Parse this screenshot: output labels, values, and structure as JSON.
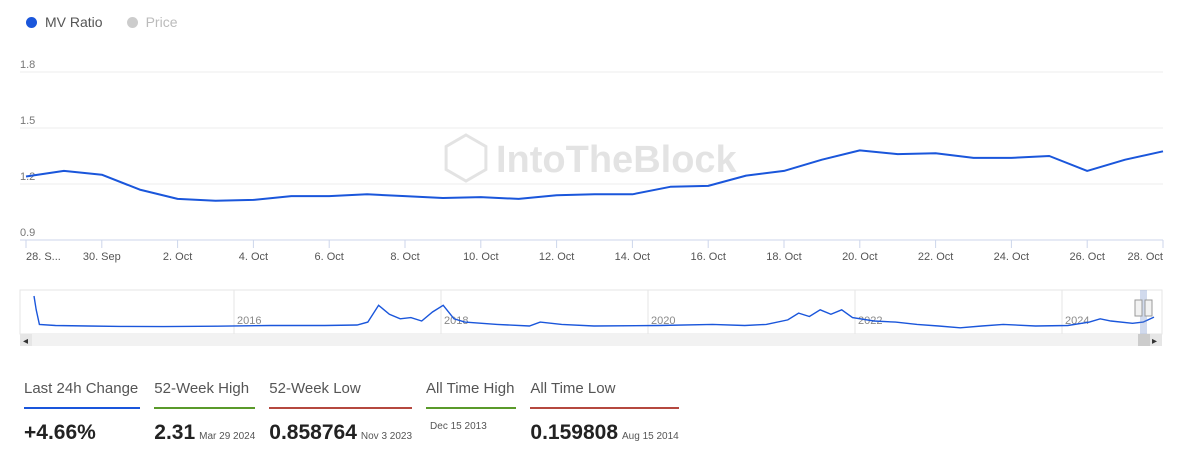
{
  "legend": {
    "items": [
      {
        "label": "MV Ratio",
        "color": "#1a56db",
        "active": true
      },
      {
        "label": "Price",
        "color": "#cccccc",
        "active": false
      }
    ]
  },
  "watermark": "IntoTheBlock",
  "chart_data": {
    "type": "line",
    "series": [
      {
        "name": "MV Ratio",
        "color": "#1a56db",
        "points": [
          [
            0,
            1.24
          ],
          [
            1,
            1.27
          ],
          [
            2,
            1.25
          ],
          [
            3,
            1.17
          ],
          [
            4,
            1.12
          ],
          [
            5,
            1.11
          ],
          [
            6,
            1.115
          ],
          [
            7,
            1.135
          ],
          [
            8,
            1.135
          ],
          [
            9,
            1.145
          ],
          [
            10,
            1.135
          ],
          [
            11,
            1.125
          ],
          [
            12,
            1.13
          ],
          [
            13,
            1.12
          ],
          [
            14,
            1.14
          ],
          [
            15,
            1.145
          ],
          [
            16,
            1.145
          ],
          [
            17,
            1.185
          ],
          [
            18,
            1.19
          ],
          [
            19,
            1.245
          ],
          [
            20,
            1.27
          ],
          [
            21,
            1.33
          ],
          [
            22,
            1.38
          ],
          [
            23,
            1.36
          ],
          [
            24,
            1.365
          ],
          [
            25,
            1.34
          ],
          [
            26,
            1.34
          ],
          [
            27,
            1.35
          ],
          [
            28,
            1.27
          ],
          [
            29,
            1.33
          ],
          [
            30,
            1.375
          ]
        ]
      }
    ],
    "x_ticks": [
      {
        "x": 0,
        "label": "28. S..."
      },
      {
        "x": 2,
        "label": "30. Sep"
      },
      {
        "x": 4,
        "label": "2. Oct"
      },
      {
        "x": 6,
        "label": "4. Oct"
      },
      {
        "x": 8,
        "label": "6. Oct"
      },
      {
        "x": 10,
        "label": "8. Oct"
      },
      {
        "x": 12,
        "label": "10. Oct"
      },
      {
        "x": 14,
        "label": "12. Oct"
      },
      {
        "x": 16,
        "label": "14. Oct"
      },
      {
        "x": 18,
        "label": "16. Oct"
      },
      {
        "x": 20,
        "label": "18. Oct"
      },
      {
        "x": 22,
        "label": "20. Oct"
      },
      {
        "x": 24,
        "label": "22. Oct"
      },
      {
        "x": 26,
        "label": "24. Oct"
      },
      {
        "x": 28,
        "label": "26. Oct"
      },
      {
        "x": 30,
        "label": "28. Oct"
      }
    ],
    "y_ticks": [
      0.9,
      1.2,
      1.5,
      1.8
    ],
    "ylim": [
      0.9,
      1.8
    ],
    "xlim": [
      0,
      30
    ],
    "grid": true,
    "navigator": {
      "year_labels": [
        "2016",
        "2018",
        "2020",
        "2022",
        "2024"
      ],
      "points": [
        [
          0,
          2.31
        ],
        [
          0.2,
          1.7
        ],
        [
          0.5,
          1.05
        ],
        [
          2,
          1.0
        ],
        [
          5,
          0.98
        ],
        [
          8,
          0.96
        ],
        [
          12,
          0.95
        ],
        [
          17,
          0.97
        ],
        [
          22,
          1.0
        ],
        [
          27,
          1.0
        ],
        [
          30,
          1.02
        ],
        [
          31,
          1.15
        ],
        [
          32,
          1.9
        ],
        [
          33,
          1.5
        ],
        [
          34,
          1.3
        ],
        [
          35,
          1.35
        ],
        [
          36,
          1.2
        ],
        [
          37,
          1.6
        ],
        [
          38,
          1.9
        ],
        [
          39,
          1.3
        ],
        [
          40,
          1.15
        ],
        [
          43,
          1.05
        ],
        [
          46,
          0.98
        ],
        [
          47,
          1.15
        ],
        [
          49,
          1.05
        ],
        [
          52,
          0.98
        ],
        [
          58,
          1.0
        ],
        [
          63,
          1.05
        ],
        [
          66,
          1.0
        ],
        [
          68,
          1.05
        ],
        [
          70,
          1.25
        ],
        [
          71,
          1.55
        ],
        [
          72,
          1.4
        ],
        [
          73,
          1.7
        ],
        [
          74,
          1.5
        ],
        [
          75,
          1.7
        ],
        [
          76,
          1.35
        ],
        [
          78,
          1.2
        ],
        [
          80,
          1.15
        ],
        [
          82,
          1.05
        ],
        [
          84,
          0.98
        ],
        [
          86,
          0.9
        ],
        [
          88,
          0.98
        ],
        [
          90,
          1.05
        ],
        [
          93,
          0.98
        ],
        [
          96,
          1.0
        ],
        [
          98,
          1.15
        ],
        [
          99,
          1.3
        ],
        [
          100,
          1.2
        ],
        [
          102,
          1.1
        ],
        [
          103,
          1.15
        ],
        [
          104,
          1.375
        ]
      ]
    }
  },
  "stats": [
    {
      "label": "Last 24h Change",
      "value": "+4.66%",
      "date": "",
      "color": "#1a56db"
    },
    {
      "label": "52-Week High",
      "value": "2.31",
      "date": "Mar 29 2024",
      "color": "#5a9a2a"
    },
    {
      "label": "52-Week Low",
      "value": "0.858764",
      "date": "Nov 3 2023",
      "color": "#b5483f"
    },
    {
      "label": "All Time High",
      "value": "",
      "date": "Dec 15 2013",
      "color": "#5a9a2a"
    },
    {
      "label": "All Time Low",
      "value": "0.159808",
      "date": "Aug 15 2014",
      "color": "#b5483f"
    }
  ],
  "nav": {
    "left_arrow": "◂",
    "right_arrow": "▸"
  }
}
